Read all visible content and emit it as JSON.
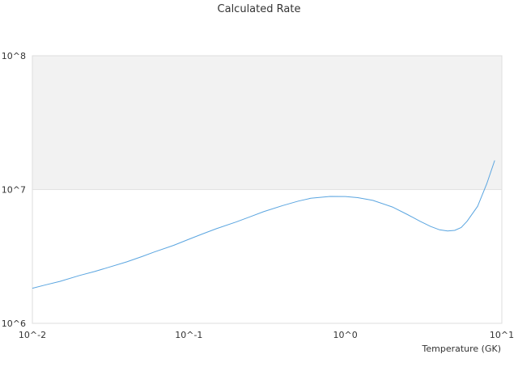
{
  "chart_data": {
    "type": "line",
    "title": "Calculated Rate",
    "xlabel": "Temperature (GK)",
    "ylabel": "",
    "xscale": "log",
    "yscale": "log",
    "xlim": [
      0.01,
      10
    ],
    "ylim": [
      1000000,
      100000000
    ],
    "grid": false,
    "x_tick_labels": [
      "10^-2",
      "10^-1",
      "10^0",
      "10^1"
    ],
    "y_tick_labels": [
      "10^6",
      "10^7",
      "10^8"
    ],
    "series": [
      {
        "color": "#5aa5e0",
        "x": [
          0.01,
          0.012,
          0.015,
          0.02,
          0.025,
          0.03,
          0.04,
          0.05,
          0.06,
          0.08,
          0.1,
          0.12,
          0.15,
          0.2,
          0.25,
          0.3,
          0.4,
          0.5,
          0.6,
          0.8,
          1.0,
          1.2,
          1.5,
          2.0,
          2.5,
          3.0,
          3.5,
          4.0,
          4.5,
          5.0,
          5.5,
          6.0,
          7.0,
          8.0,
          9.0
        ],
        "y": [
          1830000,
          1930000,
          2060000,
          2280000,
          2440000,
          2600000,
          2880000,
          3150000,
          3410000,
          3830000,
          4250000,
          4620000,
          5100000,
          5720000,
          6300000,
          6830000,
          7600000,
          8200000,
          8600000,
          8880000,
          8870000,
          8700000,
          8300000,
          7400000,
          6500000,
          5800000,
          5300000,
          5000000,
          4900000,
          4950000,
          5200000,
          5800000,
          7500000,
          11000000,
          16500000
        ]
      }
    ]
  }
}
